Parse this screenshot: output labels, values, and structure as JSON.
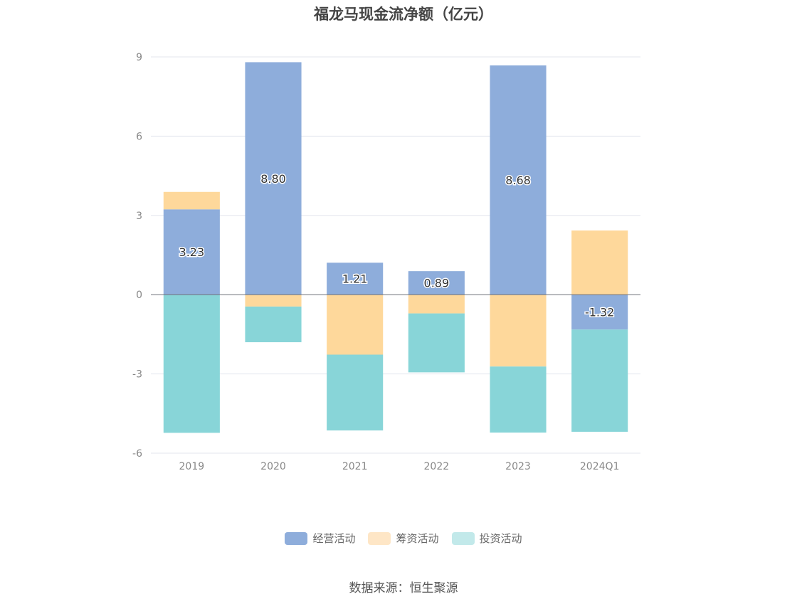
{
  "chart_data": {
    "type": "bar",
    "stacked": true,
    "title": "福龙马现金流净额（亿元）",
    "categories": [
      "2019",
      "2020",
      "2021",
      "2022",
      "2023",
      "2024Q1"
    ],
    "series": [
      {
        "name": "经营活动",
        "color": "#8eaddb",
        "values": [
          3.23,
          8.8,
          1.21,
          0.89,
          8.68,
          -1.32
        ],
        "labels": [
          "3.23",
          "8.80",
          "1.21",
          "0.89",
          "8.68",
          "-1.32"
        ]
      },
      {
        "name": "筹资活动",
        "color": "#fed89b",
        "values": [
          0.66,
          -0.45,
          -2.27,
          -0.71,
          -2.72,
          2.43
        ]
      },
      {
        "name": "投资活动",
        "color": "#88d5d8",
        "values": [
          -5.23,
          -1.35,
          -2.87,
          -2.23,
          -2.5,
          -3.87
        ]
      }
    ],
    "legend_swatch_colors": [
      "#8eaddb",
      "#fee6c6",
      "#c2e9ea"
    ],
    "yticks": [
      "-6",
      "-3",
      "0",
      "3",
      "6",
      "9"
    ],
    "ylim": [
      -6,
      9
    ],
    "grid": true,
    "legend_position": "bottom"
  },
  "source": "数据来源：恒生聚源"
}
